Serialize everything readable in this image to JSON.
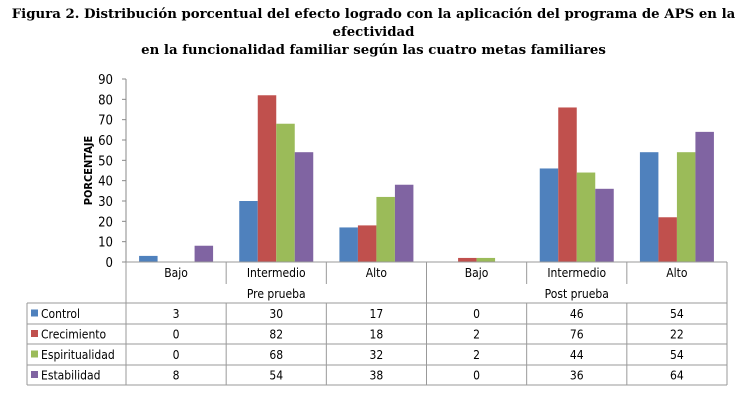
{
  "chart_data": {
    "type": "bar",
    "title_line1": "Figura 2. Distribución porcentual del efecto logrado con la aplicación del programa de APS en la efectividad",
    "title_line2": "en la funcionalidad familiar según las cuatro metas familiares",
    "ylabel": "PORCENTAJE",
    "xlabel": "",
    "ylim": [
      0,
      90
    ],
    "yticks": [
      0,
      10,
      20,
      30,
      40,
      50,
      60,
      70,
      80,
      90
    ],
    "grid": false,
    "groups": [
      {
        "label": "Pre prueba",
        "categories": [
          "Bajo",
          "Intermedio",
          "Alto"
        ]
      },
      {
        "label": "Post prueba",
        "categories": [
          "Bajo",
          "Intermedio",
          "Alto"
        ]
      }
    ],
    "categories": [
      "Bajo",
      "Intermedio",
      "Alto",
      "Bajo",
      "Intermedio",
      "Alto"
    ],
    "series": [
      {
        "name": "Control",
        "color": "#4F81BD",
        "values": [
          3,
          30,
          17,
          0,
          46,
          54
        ]
      },
      {
        "name": "Crecimiento",
        "color": "#C0504D",
        "values": [
          0,
          82,
          18,
          2,
          76,
          22
        ]
      },
      {
        "name": "Espiritualidad",
        "color": "#9BBB59",
        "values": [
          0,
          68,
          32,
          2,
          44,
          54
        ]
      },
      {
        "name": "Estabilidad",
        "color": "#8064A2",
        "values": [
          8,
          54,
          38,
          0,
          36,
          64
        ]
      }
    ],
    "legend": "table-left"
  }
}
